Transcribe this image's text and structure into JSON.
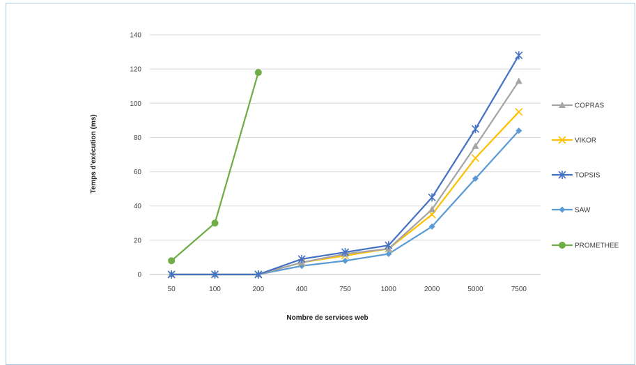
{
  "chart_data": {
    "type": "line",
    "xlabel": "Nombre de services web",
    "ylabel": "Temps d'exécution (ms)",
    "ylim": [
      0,
      140
    ],
    "yticks": [
      0,
      20,
      40,
      60,
      80,
      100,
      120,
      140
    ],
    "categories": [
      "50",
      "100",
      "200",
      "400",
      "750",
      "1000",
      "2000",
      "5000",
      "7500"
    ],
    "grid": true,
    "legend_position": "right",
    "series": [
      {
        "name": "COPRAS",
        "color": "#a5a5a5",
        "marker": "triangle",
        "values": [
          0,
          0,
          0,
          7,
          12,
          15,
          38,
          75,
          113
        ]
      },
      {
        "name": "VIKOR",
        "color": "#ffc000",
        "marker": "x",
        "values": [
          0,
          0,
          0,
          7,
          11,
          15,
          35,
          68,
          95
        ]
      },
      {
        "name": "TOPSIS",
        "color": "#4472c4",
        "marker": "star",
        "values": [
          0,
          0,
          0,
          9,
          13,
          17,
          45,
          85,
          128
        ]
      },
      {
        "name": "SAW",
        "color": "#5b9bd5",
        "marker": "diamond",
        "values": [
          0,
          0,
          0,
          5,
          8,
          12,
          28,
          56,
          84
        ]
      },
      {
        "name": "PROMETHEE",
        "color": "#70ad47",
        "marker": "circle",
        "values": [
          8,
          30,
          118,
          null,
          null,
          null,
          null,
          null,
          null
        ]
      }
    ]
  }
}
